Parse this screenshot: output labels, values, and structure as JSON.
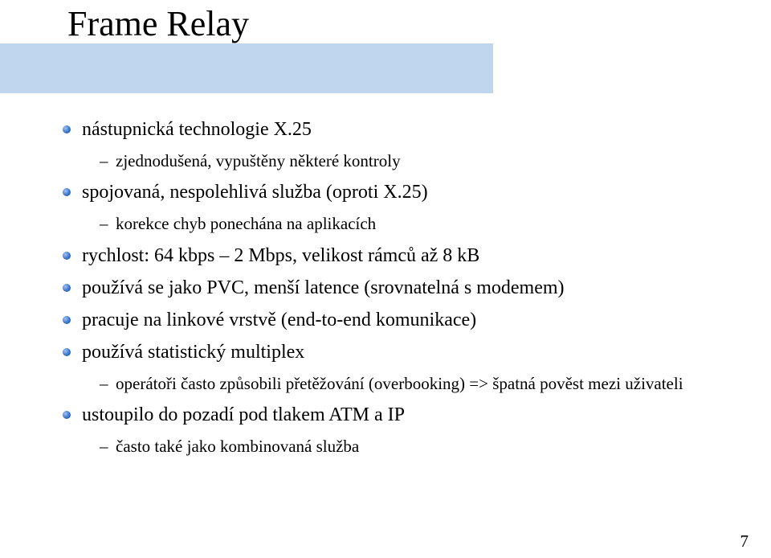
{
  "slide": {
    "title": "Frame Relay",
    "page_number": "7",
    "title_band_color": "#c0d6ee",
    "bullet_dot_gradient": [
      "#9fc4ff",
      "#3b74c7",
      "#1b417a"
    ],
    "text_color": "#000000",
    "background_color": "#ffffff",
    "title_fontsize": 44,
    "l1_fontsize": 24,
    "l2_fontsize": 21,
    "items": [
      {
        "level": 1,
        "text": "nástupnická technologie X.25"
      },
      {
        "level": 2,
        "text": "zjednodušená, vypuštěny některé kontroly"
      },
      {
        "level": 1,
        "text": "spojovaná, nespolehlivá služba (oproti X.25)"
      },
      {
        "level": 2,
        "text": "korekce chyb ponechána na aplikacích"
      },
      {
        "level": 1,
        "text": "rychlost: 64 kbps – 2 Mbps, velikost rámců až 8 kB"
      },
      {
        "level": 1,
        "text": "používá se jako PVC, menší latence (srovnatelná s modemem)"
      },
      {
        "level": 1,
        "text": "pracuje na linkové vrstvě (end-to-end komunikace)"
      },
      {
        "level": 1,
        "text": "používá statistický multiplex"
      },
      {
        "level": 2,
        "text": "operátoři často způsobili přetěžování (overbooking) => špatná pověst mezi uživateli"
      },
      {
        "level": 1,
        "text": "ustoupilo do pozadí pod tlakem ATM a IP"
      },
      {
        "level": 2,
        "text": "často také jako kombinovaná služba"
      }
    ]
  }
}
